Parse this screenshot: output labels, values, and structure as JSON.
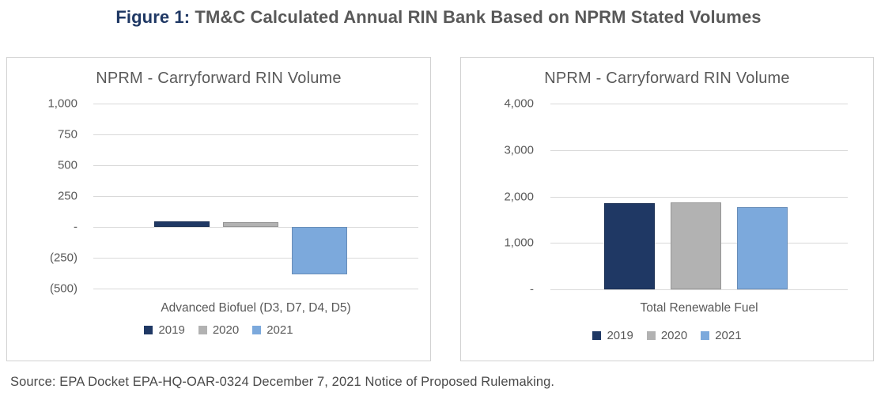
{
  "page": {
    "title": {
      "prefix": "Figure 1:",
      "text": " TM&C Calculated Annual RIN Bank Based on NPRM Stated Volumes"
    },
    "source": "Source: EPA Docket EPA-HQ-OAR-0324 December 7, 2021 Notice of Proposed Rulemaking.",
    "colors": {
      "accent_navy": "#1f3864",
      "series_gray": "#b2b2b2",
      "series_blue": "#7ca9dc",
      "text_gray": "#595959",
      "gridline": "#d9d9d9",
      "panel_border": "#d2d2d2"
    }
  },
  "chart_data": [
    {
      "type": "bar",
      "title": "NPRM - Carryforward RIN Volume",
      "xlabel": "Advanced Biofuel (D3, D7, D4, D5)",
      "categories": [
        "Advanced Biofuel (D3, D7, D4, D5)"
      ],
      "series": [
        {
          "name": "2019",
          "color": "#1f3864",
          "values": [
            45
          ]
        },
        {
          "name": "2020",
          "color": "#b2b2b2",
          "values": [
            40
          ]
        },
        {
          "name": "2021",
          "color": "#7ca9dc",
          "values": [
            -385
          ]
        }
      ],
      "ylim": [
        -500,
        1000
      ],
      "yticks": [
        {
          "label": "1,000",
          "value": 1000
        },
        {
          "label": "750",
          "value": 750
        },
        {
          "label": "500",
          "value": 500
        },
        {
          "label": "250",
          "value": 250
        },
        {
          "label": "-",
          "value": 0
        },
        {
          "label": "(250)",
          "value": -250
        },
        {
          "label": "(500)",
          "value": -500
        }
      ],
      "grid": true,
      "legend_position": "bottom"
    },
    {
      "type": "bar",
      "title": "NPRM - Carryforward RIN Volume",
      "xlabel": "Total Renewable Fuel",
      "categories": [
        "Total Renewable Fuel"
      ],
      "series": [
        {
          "name": "2019",
          "color": "#1f3864",
          "values": [
            1850
          ]
        },
        {
          "name": "2020",
          "color": "#b2b2b2",
          "values": [
            1870
          ]
        },
        {
          "name": "2021",
          "color": "#7ca9dc",
          "values": [
            1770
          ]
        }
      ],
      "ylim": [
        0,
        4000
      ],
      "yticks": [
        {
          "label": "4,000",
          "value": 4000
        },
        {
          "label": "3,000",
          "value": 3000
        },
        {
          "label": "2,000",
          "value": 2000
        },
        {
          "label": "1,000",
          "value": 1000
        },
        {
          "label": "-",
          "value": 0
        }
      ],
      "grid": true,
      "legend_position": "bottom"
    }
  ]
}
